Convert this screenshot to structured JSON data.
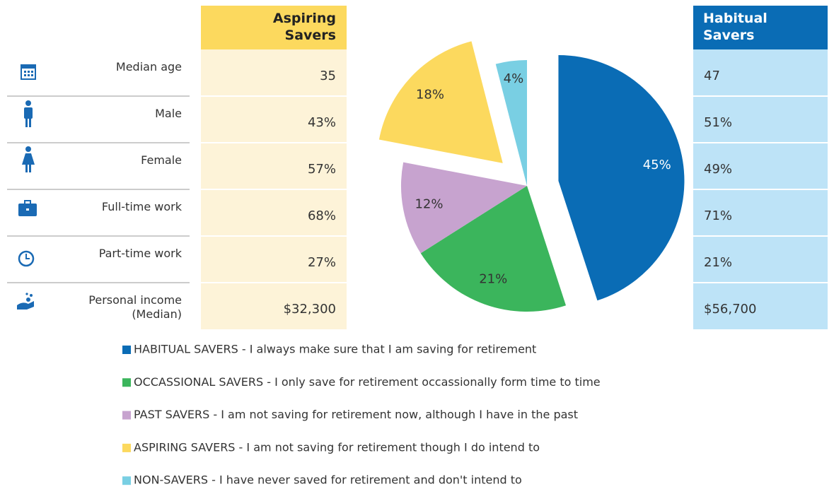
{
  "table": {
    "headers": [
      "Aspiring\nSavers",
      "Habitual\nSavers"
    ],
    "rows": [
      [
        "Median  age",
        "35",
        "47"
      ],
      [
        "Male",
        "43%",
        "51%"
      ],
      [
        "Female",
        "57%",
        "49%"
      ],
      [
        "Full-time work",
        "68%",
        "71%"
      ],
      [
        "Part-time work",
        "27%",
        "21%"
      ],
      [
        "Personal income\n(Median)",
        "$32,300",
        "$56,700"
      ]
    ]
  },
  "chart_data": {
    "type": "pie",
    "categories": [
      "HABITUAL SAVERS - I always make sure that I am saving for retirement",
      "OCCASSIONAL SAVERS - I only save for retirement occassionally form time to time",
      "PAST SAVERS - I am not saving for retirement now, although I have in the past",
      "ASPIRING SAVERS - I am not saving for retirement though I do intend to",
      "NON-SAVERS - I have never saved for retirement and don't intend to"
    ],
    "values": [
      45,
      21,
      12,
      18,
      4
    ],
    "value_labels": [
      "45%",
      "21%",
      "12%",
      "18%",
      "4%"
    ],
    "colors": [
      "#0a6cb5",
      "#3bb55c",
      "#c7a3cf",
      "#fcd95e",
      "#79cfe3"
    ]
  }
}
